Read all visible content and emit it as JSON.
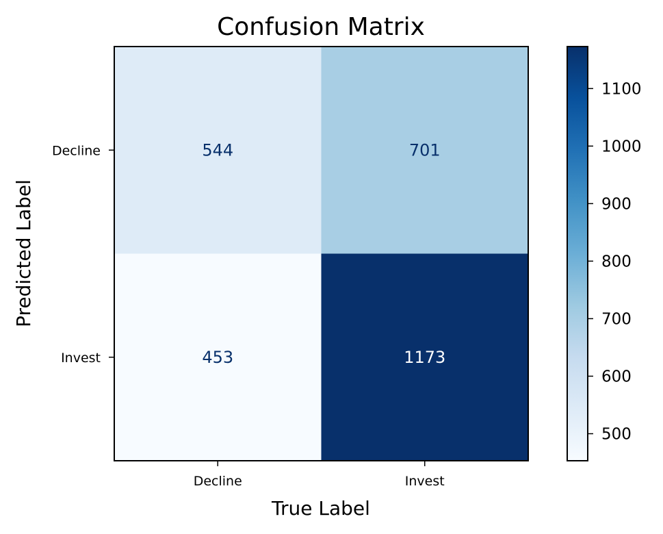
{
  "chart_data": {
    "type": "heatmap",
    "title": "Confusion Matrix",
    "xlabel": "True Label",
    "ylabel": "Predicted Label",
    "x_categories": [
      "Decline",
      "Invest"
    ],
    "y_categories": [
      "Decline",
      "Invest"
    ],
    "values": [
      [
        544,
        701
      ],
      [
        453,
        1173
      ]
    ],
    "colormap": "Blues",
    "colorbar": {
      "range": [
        453,
        1173
      ],
      "ticks": [
        500,
        600,
        700,
        800,
        900,
        1000,
        1100
      ],
      "tick_labels": [
        "500",
        "600",
        "700",
        "800",
        "900",
        "1000",
        "1100"
      ]
    },
    "grid": false
  },
  "colors": {
    "dark_text": "#08306b",
    "light_text": "#ffffff"
  }
}
